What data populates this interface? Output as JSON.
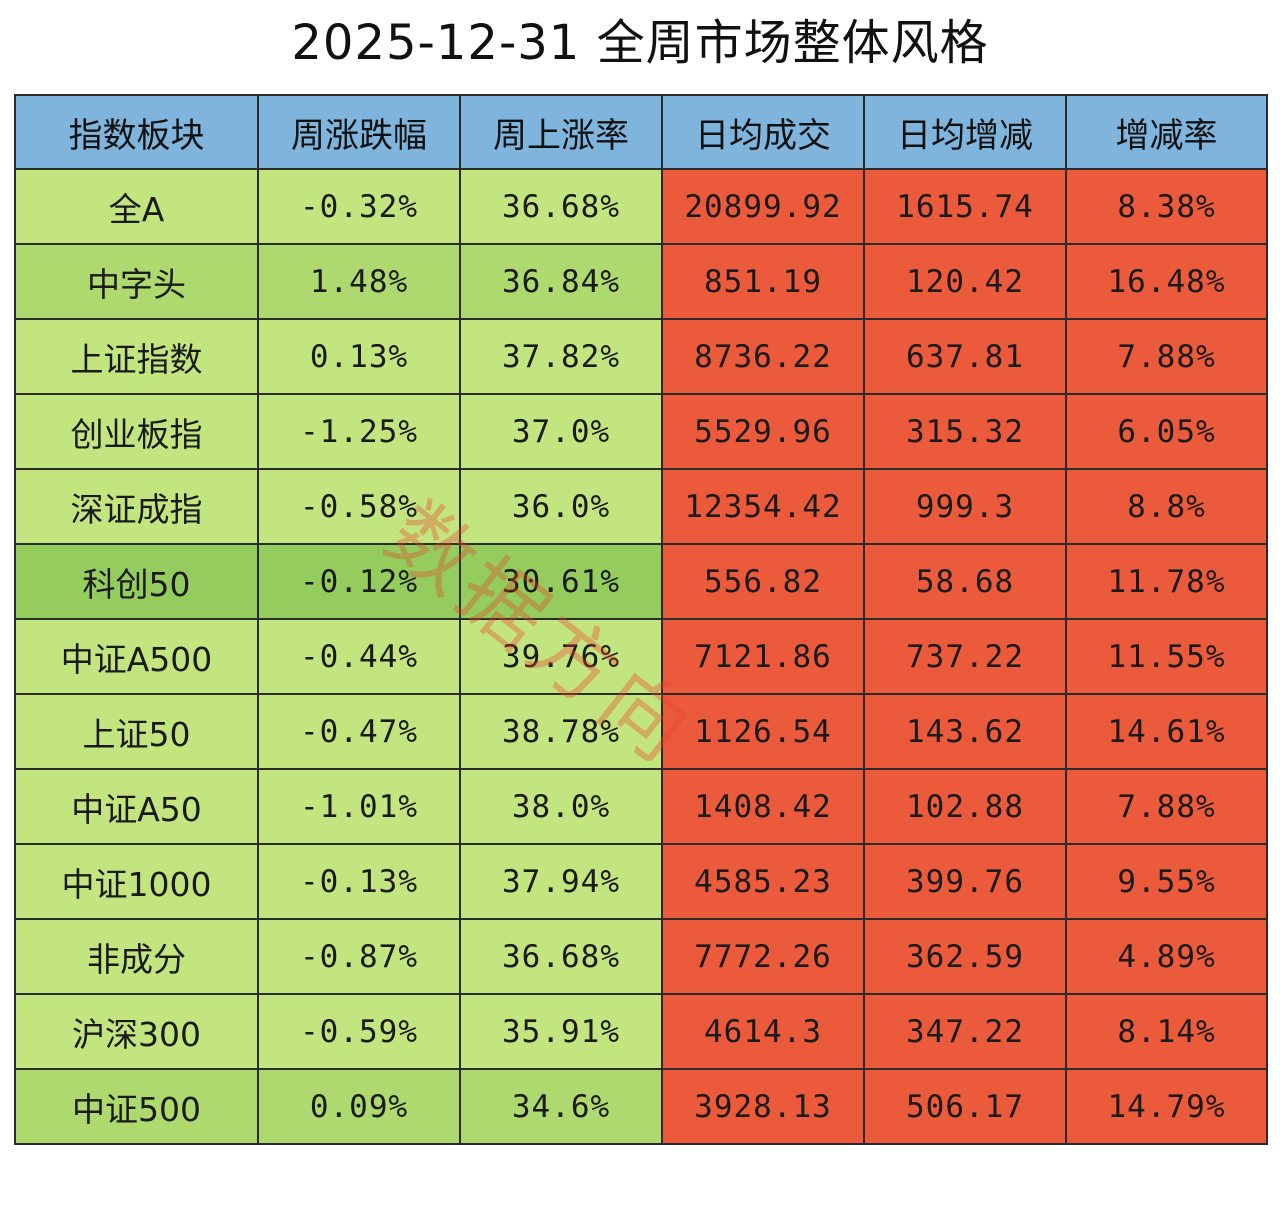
{
  "title": "2025-12-31 全周市场整体风格",
  "colors": {
    "header": "#7fb5dd",
    "green_light": "#c3e57f",
    "green_mid": "#aed96f",
    "green_dark": "#94cd5d",
    "red": "#ec5a3c",
    "watermark": "#e8422a"
  },
  "watermark": "数据方向",
  "chart_data": {
    "type": "table",
    "title": "2025-12-31 全周市场整体风格",
    "columns": [
      "指数板块",
      "周涨跌幅",
      "周上涨率",
      "日均成交",
      "日均增减",
      "增减率"
    ],
    "rows": [
      [
        "全A",
        "-0.32%",
        "36.68%",
        "20899.92",
        "1615.74",
        "8.38%"
      ],
      [
        "中字头",
        "1.48%",
        "36.84%",
        "851.19",
        "120.42",
        "16.48%"
      ],
      [
        "上证指数",
        "0.13%",
        "37.82%",
        "8736.22",
        "637.81",
        "7.88%"
      ],
      [
        "创业板指",
        "-1.25%",
        "37.0%",
        "5529.96",
        "315.32",
        "6.05%"
      ],
      [
        "深证成指",
        "-0.58%",
        "36.0%",
        "12354.42",
        "999.3",
        "8.8%"
      ],
      [
        "科创50",
        "-0.12%",
        "30.61%",
        "556.82",
        "58.68",
        "11.78%"
      ],
      [
        "中证A500",
        "-0.44%",
        "39.76%",
        "7121.86",
        "737.22",
        "11.55%"
      ],
      [
        "上证50",
        "-0.47%",
        "38.78%",
        "1126.54",
        "143.62",
        "14.61%"
      ],
      [
        "中证A50",
        "-1.01%",
        "38.0%",
        "1408.42",
        "102.88",
        "7.88%"
      ],
      [
        "中证1000",
        "-0.13%",
        "37.94%",
        "4585.23",
        "399.76",
        "9.55%"
      ],
      [
        "非成分",
        "-0.87%",
        "36.68%",
        "7772.26",
        "362.59",
        "4.89%"
      ],
      [
        "沪深300",
        "-0.59%",
        "35.91%",
        "4614.3",
        "347.22",
        "8.14%"
      ],
      [
        "中证500",
        "0.09%",
        "34.6%",
        "3928.13",
        "506.17",
        "14.79%"
      ]
    ],
    "row_shades": [
      "light",
      "mid",
      "light",
      "light",
      "light",
      "dark",
      "light",
      "light",
      "light",
      "light",
      "light",
      "light",
      "mid"
    ]
  }
}
